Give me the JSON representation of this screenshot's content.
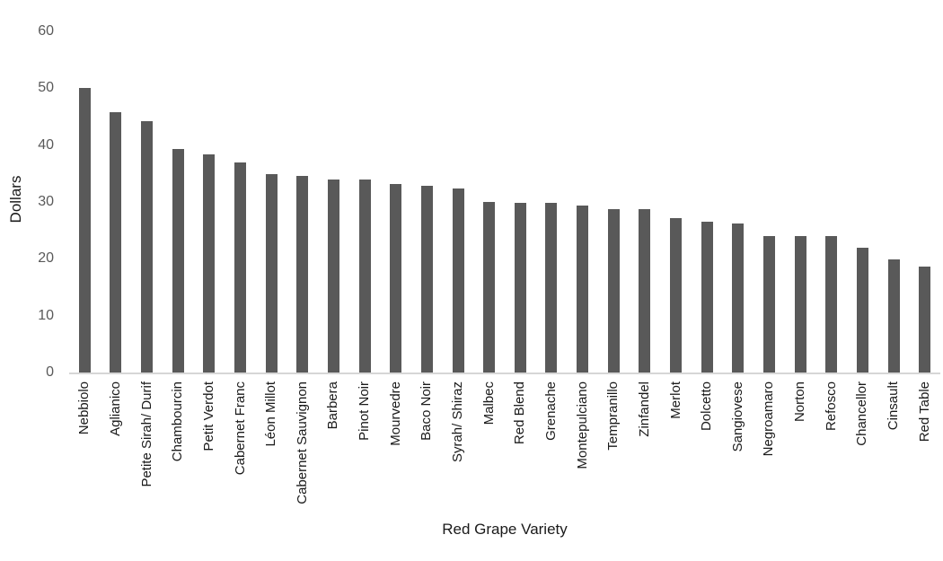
{
  "chart_data": {
    "type": "bar",
    "title": "",
    "xlabel": "Red Grape Variety",
    "ylabel": "Dollars",
    "categories": [
      "Nebbiolo",
      "Aglianico",
      "Petite Sirah/ Durif",
      "Chambourcin",
      "Petit Verdot",
      "Cabernet Franc",
      "Léon Millot",
      "Cabernet Sauvignon",
      "Barbera",
      "Pinot Noir",
      "Mourvedre",
      "Baco Noir",
      "Syrah/ Shiraz",
      "Malbec",
      "Red Blend",
      "Grenache",
      "Montepulciano",
      "Tempranillo",
      "Zinfandel",
      "Merlot",
      "Dolcetto",
      "Sangiovese",
      "Negroamaro",
      "Norton",
      "Refosco",
      "Chancellor",
      "Cinsault",
      "Red Table"
    ],
    "values": [
      50,
      45.8,
      44.2,
      39.3,
      38.4,
      37,
      34.9,
      34.6,
      33.9,
      33.9,
      33.1,
      32.8,
      32.4,
      30,
      29.9,
      29.8,
      29.4,
      28.8,
      28.7,
      27.2,
      26.5,
      26.2,
      24,
      24,
      24,
      21.9,
      19.9,
      18.6
    ],
    "ylim": [
      0,
      60
    ],
    "yticks": [
      0,
      10,
      20,
      30,
      40,
      50,
      60
    ],
    "grid": false,
    "legend_position": "none",
    "bar_color": "#595959",
    "axis_line_color": "#d6d6d6",
    "tick_label_color": "#595959",
    "text_color": "#1a1a1a"
  }
}
